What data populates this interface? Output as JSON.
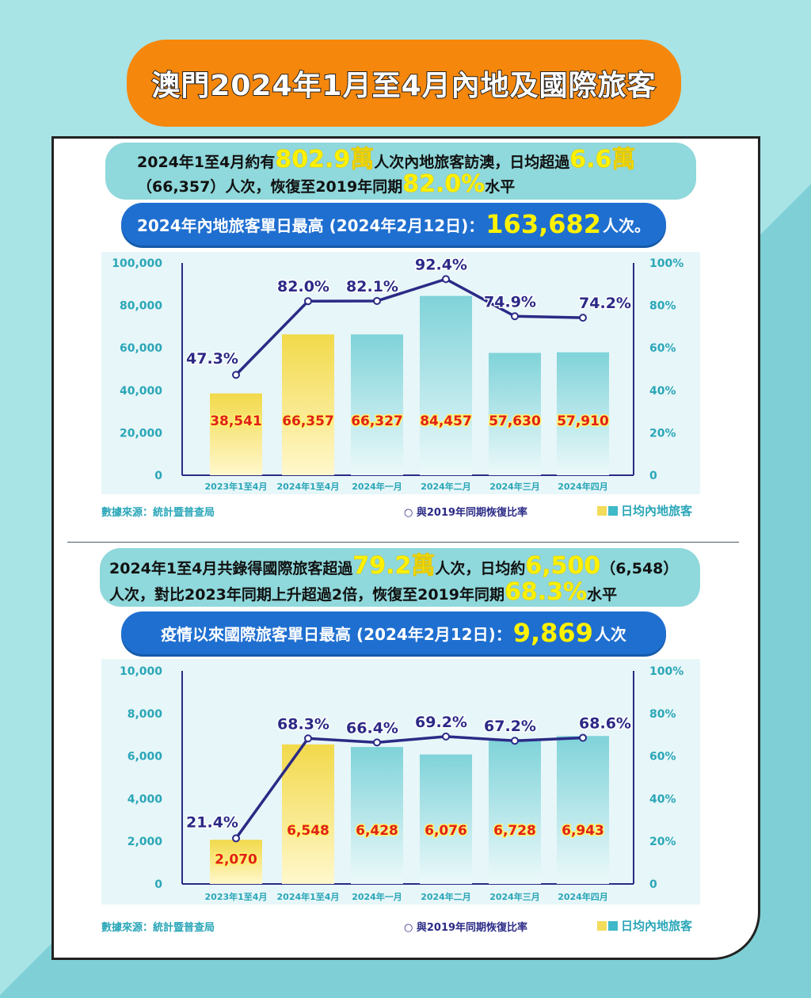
{
  "title": "澳門2024年1月至4月內地及國際旅客",
  "mainland": {
    "line1_a": "2024年1至4月約有",
    "line1_hl1": "802.9萬",
    "line1_b": "人次內地旅客訪澳，日均超過",
    "line1_hl2": "6.6萬",
    "line2_a": "（66,357）人次，恢復至2019年同期",
    "line2_hl": "82.0%",
    "line2_b": "水平",
    "peak_a": "2024年內地旅客單日最高 (2024年2月12日)：",
    "peak_value": "163,682",
    "peak_b": "人次。"
  },
  "international": {
    "line1_a": "2024年1至4月共錄得國際旅客超過",
    "line1_hl1": "79.2萬",
    "line1_b": "人次，日均約",
    "line1_hl2": "6,500",
    "line1_c": "（6,548）",
    "line2_a": "人次，對比2023年同期上升超過2倍，恢復至2019年同期",
    "line2_hl": "68.3%",
    "line2_b": "水平",
    "peak_a": "疫情以來國際旅客單日最高 (2024年2月12日)：",
    "peak_value": "9,869",
    "peak_b": "人次"
  },
  "legend": {
    "source": "數據來源：統計暨普查局",
    "line": "與2019年同期恢復比率",
    "bars": "日均內地旅客"
  },
  "colors": {
    "orange": "#f5870c",
    "blue": "#1f6fd0",
    "navy": "#2b2a86",
    "yellow_bar": "#f2dc5a",
    "teal_bar": "#7fd3d9",
    "value_red": "#e0201a"
  },
  "chart_data": [
    {
      "type": "bar",
      "categories": [
        "2023年1至4月",
        "2024年1至4月",
        "2024年一月",
        "2024年二月",
        "2024年三月",
        "2024年四月"
      ],
      "values": [
        38541,
        66357,
        66327,
        84457,
        57630,
        57910
      ],
      "value_labels": [
        "38,541",
        "66,357",
        "66,327",
        "84,457",
        "57,630",
        "57,910"
      ],
      "ylim": [
        0,
        100000
      ],
      "yticks": [
        "0",
        "20,000",
        "40,000",
        "60,000",
        "80,000",
        "100,000"
      ],
      "y2lim": [
        0,
        100
      ],
      "y2ticks": [
        "0",
        "20%",
        "40%",
        "60%",
        "80%",
        "100%"
      ],
      "line": {
        "values": [
          47.3,
          82.0,
          82.1,
          92.4,
          74.9,
          74.2
        ],
        "labels": [
          "47.3%",
          "82.0%",
          "82.1%",
          "92.4%",
          "74.9%",
          "74.2%"
        ]
      },
      "bar_colors": [
        "yellow",
        "yellow",
        "teal",
        "teal",
        "teal",
        "teal"
      ],
      "grid": false
    },
    {
      "type": "bar",
      "categories": [
        "2023年1至4月",
        "2024年1至4月",
        "2024年一月",
        "2024年二月",
        "2024年三月",
        "2024年四月"
      ],
      "values": [
        2070,
        6548,
        6428,
        6076,
        6728,
        6943
      ],
      "value_labels": [
        "2,070",
        "6,548",
        "6,428",
        "6,076",
        "6,728",
        "6,943"
      ],
      "ylim": [
        0,
        10000
      ],
      "yticks": [
        "0",
        "2,000",
        "4,000",
        "6,000",
        "8,000",
        "10,000"
      ],
      "y2lim": [
        0,
        100
      ],
      "y2ticks": [
        "0",
        "20%",
        "40%",
        "60%",
        "80%",
        "100%"
      ],
      "line": {
        "values": [
          21.4,
          68.3,
          66.4,
          69.2,
          67.2,
          68.6
        ],
        "labels": [
          "21.4%",
          "68.3%",
          "66.4%",
          "69.2%",
          "67.2%",
          "68.6%"
        ]
      },
      "bar_colors": [
        "yellow",
        "yellow",
        "teal",
        "teal",
        "teal",
        "teal"
      ],
      "grid": false
    }
  ]
}
